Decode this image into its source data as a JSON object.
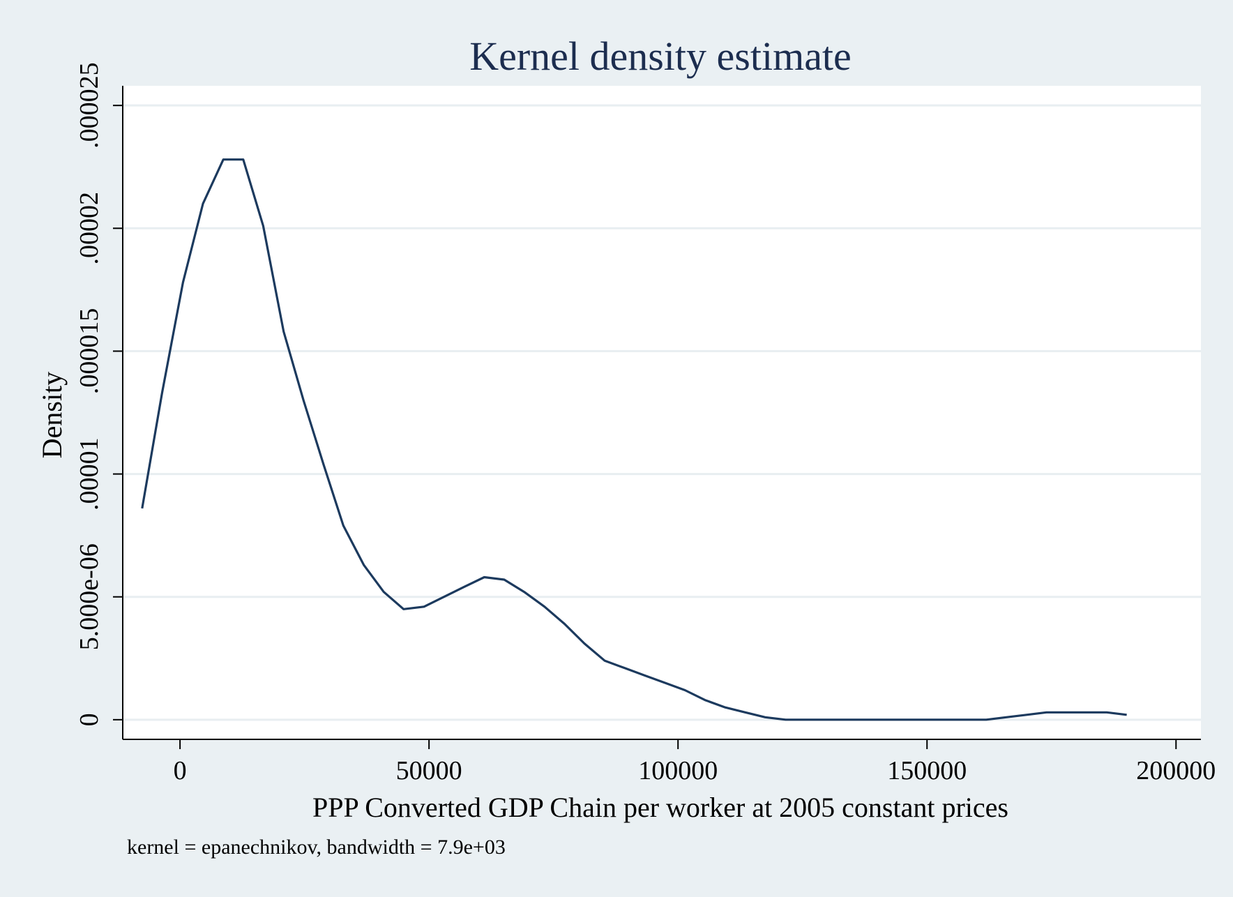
{
  "chart_data": {
    "type": "line",
    "title": "Kernel density estimate",
    "xlabel": "PPP Converted GDP Chain per worker at 2005 constant prices",
    "ylabel": "Density",
    "note": "kernel = epanechnikov, bandwidth =  7.9e+03",
    "xlim": [
      -11500,
      205000
    ],
    "ylim": [
      -8e-07,
      2.58e-05
    ],
    "x_ticks": [
      0,
      50000,
      100000,
      150000,
      200000
    ],
    "x_tick_labels": [
      "0",
      "50000",
      "100000",
      "150000",
      "200000"
    ],
    "y_ticks": [
      0,
      5e-06,
      1e-05,
      1.5e-05,
      2e-05,
      2.5e-05
    ],
    "y_tick_labels": [
      "0",
      "5.000e-06",
      ".00001",
      ".000015",
      ".00002",
      ".000025"
    ],
    "grid": true,
    "line_color": "#1c3a5e",
    "series": [
      {
        "x": [
          -7600,
          -3600,
          600,
          4600,
          8700,
          12700,
          16700,
          20800,
          24800,
          28800,
          32800,
          36900,
          40900,
          44900,
          49000,
          53000,
          57000,
          61100,
          65100,
          69100,
          73200,
          77200,
          81200,
          85300,
          89300,
          93300,
          97400,
          101400,
          105400,
          109500,
          113500,
          117500,
          121600,
          125600,
          129600,
          133700,
          137700,
          141700,
          145800,
          149800,
          153800,
          157900,
          161900,
          165900,
          170000,
          174000,
          178000,
          182100,
          186100,
          190100
        ],
        "y": [
          8.6e-06,
          1.33e-05,
          1.78e-05,
          2.1e-05,
          2.28e-05,
          2.28e-05,
          2.01e-05,
          1.58e-05,
          1.3e-05,
          1.04e-05,
          7.9e-06,
          6.3e-06,
          5.2e-06,
          4.5e-06,
          4.6e-06,
          5e-06,
          5.4e-06,
          5.8e-06,
          5.7e-06,
          5.2e-06,
          4.6e-06,
          3.9e-06,
          3.1e-06,
          2.4e-06,
          2.1e-06,
          1.8e-06,
          1.5e-06,
          1.2e-06,
          8e-07,
          5e-07,
          3e-07,
          1e-07,
          0.0,
          0.0,
          0.0,
          0.0,
          0.0,
          0.0,
          0.0,
          0.0,
          0.0,
          0.0,
          0.0,
          1e-07,
          2e-07,
          3e-07,
          3e-07,
          3e-07,
          3e-07,
          2e-07
        ]
      }
    ]
  }
}
